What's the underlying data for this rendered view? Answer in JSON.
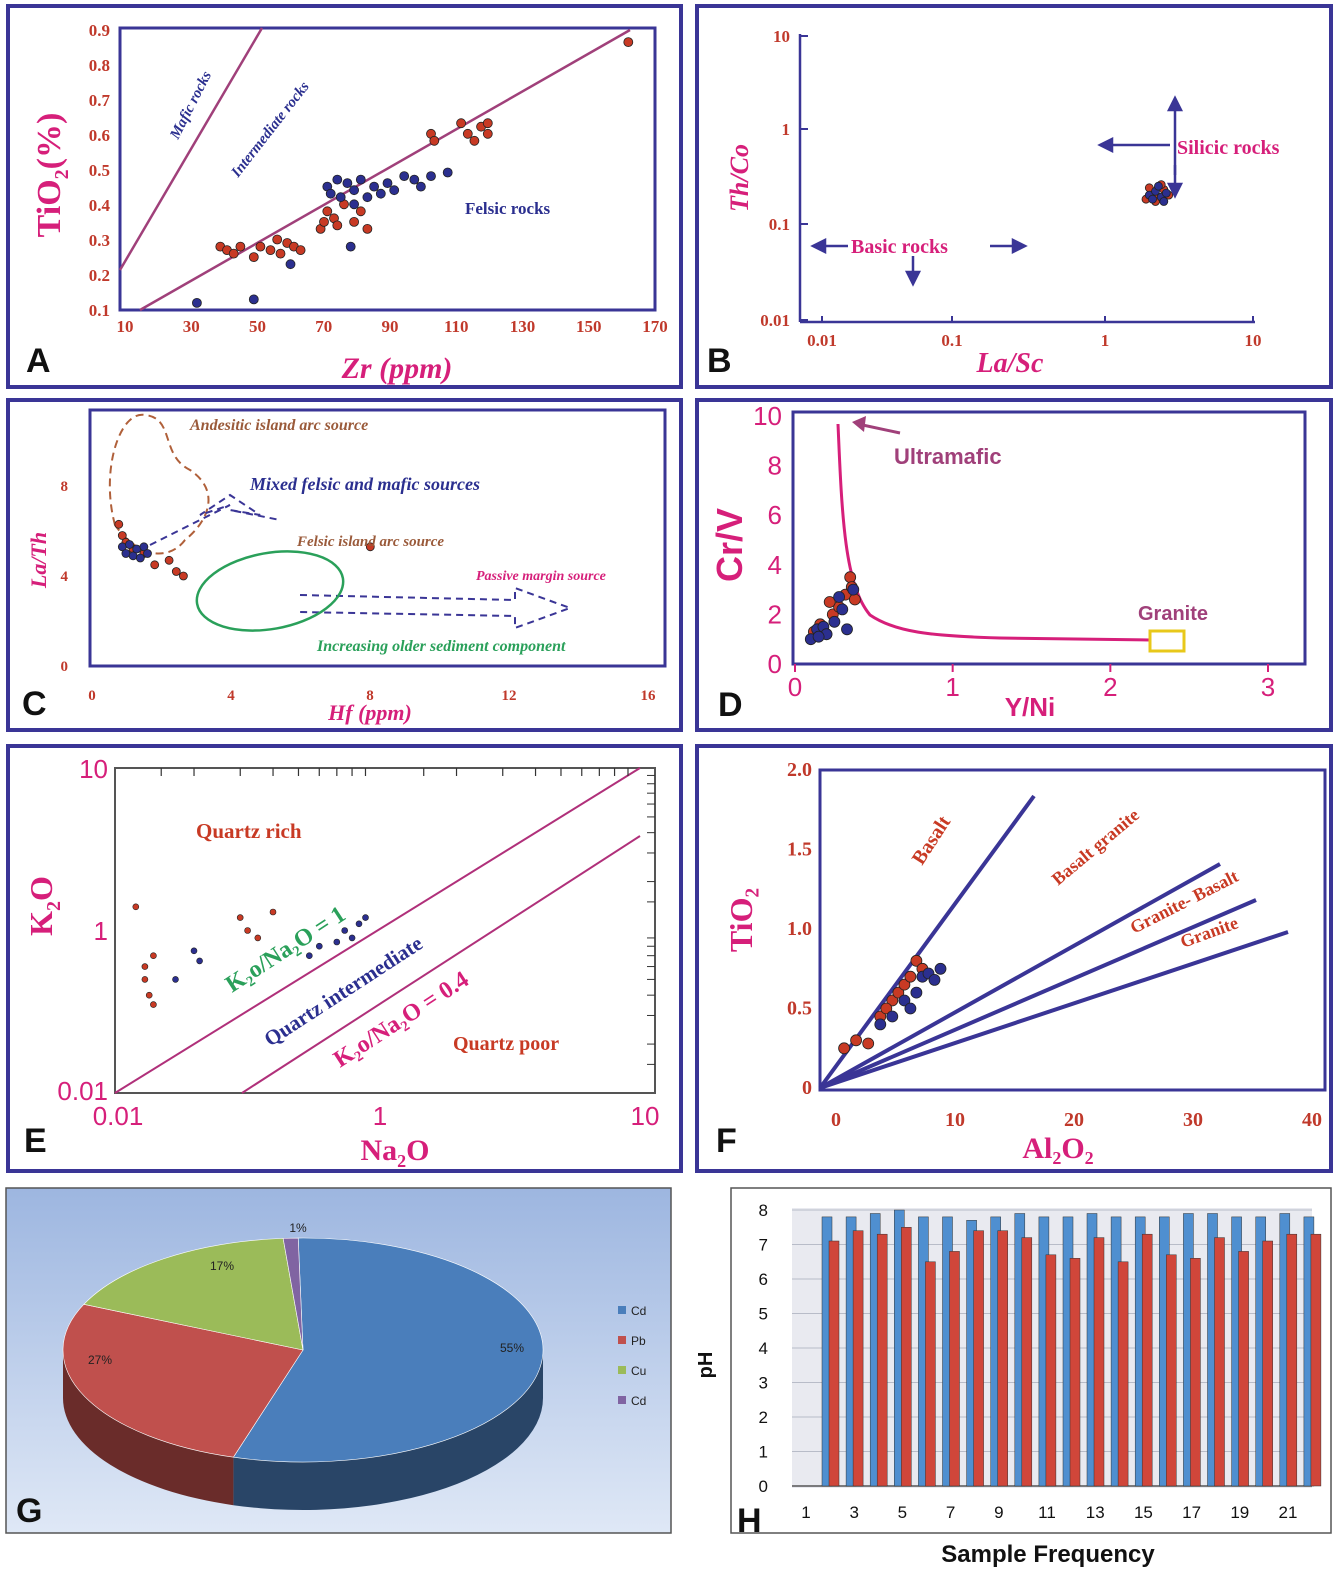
{
  "panels": {
    "A": {
      "letter": "A",
      "xlabel": "Zr (ppm)",
      "ylabel_main": "TiO",
      "ylabel_sub": "2",
      "ylabel_tail": "(%)",
      "x_ticks": [
        "10",
        "30",
        "50",
        "70",
        "90",
        "110",
        "130",
        "150",
        "170"
      ],
      "y_ticks": [
        "0.1",
        "0.2",
        "0.3",
        "0.4",
        "0.5",
        "0.6",
        "0.7",
        "0.8",
        "0.9"
      ],
      "labels": {
        "mafic": "Mafic rocks",
        "intermediate": "Intermediate rocks",
        "felsic": "Felsic rocks"
      }
    },
    "B": {
      "letter": "B",
      "xlabel": "La/Sc",
      "ylabel": "Th/Co",
      "x_ticks": [
        "0.01",
        "0.1",
        "1",
        "10"
      ],
      "y_ticks": [
        "0.01",
        "0.1",
        "1",
        "10"
      ],
      "labels": {
        "silicic": "Silicic rocks",
        "basic": "Basic rocks"
      }
    },
    "C": {
      "letter": "C",
      "xlabel": "Hf (ppm)",
      "ylabel": "La/Th",
      "x_ticks": [
        "0",
        "4",
        "8",
        "12",
        "16"
      ],
      "y_ticks": [
        "0",
        "4",
        "8"
      ],
      "labels": {
        "andesitic": "Andesitic island arc source",
        "mixed": "Mixed felsic and mafic sources",
        "felsic_arc": "Felsic island arc source",
        "passive": "Passive margin source",
        "older": "Increasing older sediment component"
      }
    },
    "D": {
      "letter": "D",
      "xlabel": "Y/Ni",
      "ylabel": "Cr/V",
      "x_ticks": [
        "0",
        "1",
        "2",
        "3"
      ],
      "y_ticks": [
        "0",
        "2",
        "4",
        "6",
        "8",
        "10"
      ],
      "labels": {
        "ultramafic": "Ultramafic",
        "granite": "Granite"
      }
    },
    "E": {
      "letter": "E",
      "xlabel_main": "Na",
      "xlabel_sub": "2",
      "xlabel_tail": "O",
      "ylabel_main": "K",
      "ylabel_sub": "2",
      "ylabel_tail": "O",
      "x_ticks": [
        "0.01",
        "1",
        "10"
      ],
      "y_ticks": [
        "0.01",
        "1",
        "10"
      ],
      "labels": {
        "quartz_rich": "Quartz rich",
        "ratio1": "K₂o/Na₂O = 1",
        "intermediate": "Quartz intermediate",
        "ratio04": "K₂o/Na₂O = 0.4",
        "quartz_poor": "Quartz poor"
      }
    },
    "F": {
      "letter": "F",
      "xlabel": "Al₂O₂",
      "ylabel": "TiO₂",
      "x_ticks": [
        "0",
        "10",
        "20",
        "30",
        "40"
      ],
      "y_ticks": [
        "0",
        "0.5",
        "1.0",
        "1.5",
        "2.0"
      ],
      "labels": {
        "basalt": "Basalt",
        "basalt_granite": "Basalt granite",
        "granite_basalt": "Granite- Basalt",
        "granite": "Granite"
      }
    },
    "G": {
      "letter": "G"
    },
    "H": {
      "letter": "H",
      "ylabel": "pH",
      "xlabel": "Sample Frequency",
      "y_ticks": [
        "0",
        "1",
        "2",
        "3",
        "4",
        "5",
        "6",
        "7",
        "8"
      ],
      "x_ticks": [
        "1",
        "3",
        "5",
        "7",
        "9",
        "11",
        "13",
        "15",
        "17",
        "19",
        "21"
      ]
    }
  },
  "chart_data": [
    {
      "type": "scatter",
      "panel": "A",
      "xlabel": "Zr (ppm)",
      "ylabel": "TiO2 (%)",
      "xlim": [
        10,
        170
      ],
      "ylim": [
        0.1,
        0.9
      ],
      "series": [
        {
          "color": "#c83a24",
          "points": [
            [
              40,
              0.28
            ],
            [
              42,
              0.27
            ],
            [
              44,
              0.26
            ],
            [
              46,
              0.28
            ],
            [
              50,
              0.25
            ],
            [
              52,
              0.28
            ],
            [
              55,
              0.27
            ],
            [
              57,
              0.3
            ],
            [
              58,
              0.26
            ],
            [
              60,
              0.29
            ],
            [
              62,
              0.28
            ],
            [
              64,
              0.27
            ],
            [
              70,
              0.33
            ],
            [
              71,
              0.35
            ],
            [
              72,
              0.38
            ],
            [
              74,
              0.36
            ],
            [
              75,
              0.34
            ],
            [
              77,
              0.4
            ],
            [
              80,
              0.35
            ],
            [
              82,
              0.38
            ],
            [
              84,
              0.33
            ],
            [
              103,
              0.6
            ],
            [
              104,
              0.58
            ],
            [
              112,
              0.63
            ],
            [
              114,
              0.6
            ],
            [
              116,
              0.58
            ],
            [
              118,
              0.62
            ],
            [
              120,
              0.6
            ],
            [
              120,
              0.63
            ],
            [
              162,
              0.86
            ]
          ]
        },
        {
          "color": "#2b2f8f",
          "points": [
            [
              33,
              0.12
            ],
            [
              50,
              0.13
            ],
            [
              61,
              0.23
            ],
            [
              72,
              0.45
            ],
            [
              73,
              0.43
            ],
            [
              75,
              0.47
            ],
            [
              76,
              0.42
            ],
            [
              78,
              0.46
            ],
            [
              80,
              0.44
            ],
            [
              80,
              0.4
            ],
            [
              82,
              0.47
            ],
            [
              84,
              0.42
            ],
            [
              86,
              0.45
            ],
            [
              88,
              0.43
            ],
            [
              90,
              0.46
            ],
            [
              92,
              0.44
            ],
            [
              95,
              0.48
            ],
            [
              98,
              0.47
            ],
            [
              100,
              0.45
            ],
            [
              103,
              0.48
            ],
            [
              108,
              0.49
            ],
            [
              79,
              0.28
            ]
          ]
        }
      ]
    },
    {
      "type": "scatter",
      "panel": "B",
      "xlabel": "La/Sc",
      "ylabel": "Th/Co",
      "x_scale": "log",
      "y_scale": "log",
      "xlim": [
        0.01,
        10
      ],
      "ylim": [
        0.01,
        10
      ],
      "series": [
        {
          "color": "#c83a24",
          "points": [
            [
              1.8,
              0.19
            ],
            [
              2.0,
              0.22
            ],
            [
              2.2,
              0.2
            ],
            [
              2.4,
              0.24
            ],
            [
              2.1,
              0.18
            ],
            [
              2.6,
              0.21
            ],
            [
              1.9,
              0.25
            ],
            [
              2.3,
              0.27
            ]
          ]
        },
        {
          "color": "#2b2f8f",
          "points": [
            [
              1.9,
              0.21
            ],
            [
              2.1,
              0.23
            ],
            [
              2.3,
              0.2
            ],
            [
              2.5,
              0.22
            ],
            [
              2.0,
              0.19
            ],
            [
              2.2,
              0.26
            ],
            [
              2.4,
              0.18
            ]
          ]
        }
      ]
    },
    {
      "type": "scatter",
      "panel": "C",
      "xlabel": "Hf (ppm)",
      "ylabel": "La/Th",
      "xlim": [
        0,
        16
      ],
      "ylim": [
        0,
        10
      ],
      "series": [
        {
          "color": "#c83a24",
          "points": [
            [
              0.8,
              6.3
            ],
            [
              0.9,
              5.8
            ],
            [
              1.0,
              5.5
            ],
            [
              1.2,
              5.2
            ],
            [
              1.5,
              5.0
            ],
            [
              1.8,
              4.5
            ],
            [
              2.2,
              4.7
            ],
            [
              2.4,
              4.2
            ],
            [
              2.6,
              4.0
            ],
            [
              7.8,
              5.3
            ]
          ]
        },
        {
          "color": "#2b2f8f",
          "points": [
            [
              0.9,
              5.3
            ],
            [
              1.0,
              5.0
            ],
            [
              1.1,
              5.4
            ],
            [
              1.2,
              4.9
            ],
            [
              1.3,
              5.2
            ],
            [
              1.4,
              4.8
            ],
            [
              1.5,
              5.3
            ],
            [
              1.6,
              5.0
            ]
          ]
        }
      ]
    },
    {
      "type": "scatter",
      "panel": "D",
      "xlabel": "Y/Ni",
      "ylabel": "Cr/V",
      "xlim": [
        0,
        3
      ],
      "ylim": [
        0,
        10
      ],
      "series": [
        {
          "color": "#c83a24",
          "points": [
            [
              0.12,
              1.3
            ],
            [
              0.16,
              1.6
            ],
            [
              0.2,
              1.2
            ],
            [
              0.24,
              2.0
            ],
            [
              0.28,
              2.3
            ],
            [
              0.32,
              2.8
            ],
            [
              0.35,
              3.5
            ],
            [
              0.36,
              3.1
            ],
            [
              0.38,
              2.6
            ],
            [
              0.22,
              2.5
            ]
          ]
        },
        {
          "color": "#2b2f8f",
          "points": [
            [
              0.1,
              1.0
            ],
            [
              0.14,
              1.4
            ],
            [
              0.18,
              1.5
            ],
            [
              0.2,
              1.2
            ],
            [
              0.25,
              1.7
            ],
            [
              0.3,
              2.2
            ],
            [
              0.33,
              1.4
            ],
            [
              0.28,
              2.7
            ],
            [
              0.37,
              3.0
            ],
            [
              0.15,
              1.1
            ]
          ]
        }
      ]
    },
    {
      "type": "scatter",
      "panel": "E",
      "xlabel": "Na2O",
      "ylabel": "K2O",
      "x_scale": "log",
      "y_scale": "log",
      "xlim": [
        0.1,
        10
      ],
      "ylim": [
        0.1,
        10
      ],
      "series": [
        {
          "color": "#c83a24",
          "points": [
            [
              0.12,
              1.4
            ],
            [
              0.13,
              0.6
            ],
            [
              0.135,
              0.4
            ],
            [
              0.14,
              0.35
            ],
            [
              0.13,
              0.5
            ],
            [
              0.14,
              0.7
            ],
            [
              0.3,
              1.2
            ],
            [
              0.32,
              1.0
            ],
            [
              0.35,
              0.9
            ],
            [
              0.4,
              1.3
            ]
          ]
        },
        {
          "color": "#2b2f8f",
          "points": [
            [
              0.17,
              0.5
            ],
            [
              0.2,
              0.75
            ],
            [
              0.21,
              0.65
            ],
            [
              0.55,
              0.7
            ],
            [
              0.6,
              0.8
            ],
            [
              0.7,
              0.85
            ],
            [
              0.75,
              1.0
            ],
            [
              0.8,
              0.9
            ],
            [
              0.85,
              1.1
            ],
            [
              0.9,
              1.2
            ]
          ]
        }
      ]
    },
    {
      "type": "scatter",
      "panel": "F",
      "xlabel": "Al2O2",
      "ylabel": "TiO2",
      "xlim": [
        0,
        40
      ],
      "ylim": [
        0,
        2.0
      ],
      "series": [
        {
          "color": "#c83a24",
          "points": [
            [
              2,
              0.25
            ],
            [
              3,
              0.3
            ],
            [
              4,
              0.28
            ],
            [
              5,
              0.45
            ],
            [
              6,
              0.55
            ],
            [
              6.5,
              0.6
            ],
            [
              7,
              0.65
            ],
            [
              7.5,
              0.7
            ],
            [
              8,
              0.8
            ],
            [
              8.5,
              0.75
            ],
            [
              5.5,
              0.5
            ]
          ]
        },
        {
          "color": "#2b2f8f",
          "points": [
            [
              5,
              0.4
            ],
            [
              6,
              0.45
            ],
            [
              7,
              0.55
            ],
            [
              8,
              0.6
            ],
            [
              8.5,
              0.7
            ],
            [
              9,
              0.72
            ],
            [
              9.5,
              0.68
            ],
            [
              10,
              0.75
            ],
            [
              7.5,
              0.5
            ]
          ]
        }
      ]
    },
    {
      "type": "pie",
      "panel": "G",
      "slices": [
        {
          "label": "Cd",
          "value": 55,
          "color": "#4a7ebb",
          "text": "55%"
        },
        {
          "label": "Pb",
          "value": 27,
          "color": "#c0504d",
          "text": "27%"
        },
        {
          "label": "Cu",
          "value": 17,
          "color": "#9bbb59",
          "text": "17%"
        },
        {
          "label": "Cd",
          "value": 1,
          "color": "#8064a2",
          "text": "1%"
        }
      ]
    },
    {
      "type": "bar",
      "panel": "H",
      "xlabel": "Sample Frequency",
      "ylabel": "pH",
      "ylim": [
        0,
        8
      ],
      "categories": [
        "1",
        "2",
        "3",
        "4",
        "5",
        "6",
        "7",
        "8",
        "9",
        "10",
        "11",
        "12",
        "13",
        "14",
        "15",
        "16",
        "17",
        "18",
        "19",
        "20",
        "21"
      ],
      "series": [
        {
          "color": "#4f8fd0",
          "values": [
            7.8,
            7.8,
            7.9,
            8.0,
            7.8,
            7.8,
            7.7,
            7.8,
            7.9,
            7.8,
            7.8,
            7.9,
            7.8,
            7.8,
            7.8,
            7.9,
            7.9,
            7.8,
            7.8,
            7.9,
            7.8
          ]
        },
        {
          "color": "#d0463a",
          "values": [
            7.1,
            7.4,
            7.3,
            7.5,
            6.5,
            6.8,
            7.4,
            7.4,
            7.2,
            6.7,
            6.6,
            7.2,
            6.5,
            7.3,
            6.7,
            6.6,
            7.2,
            6.8,
            7.1,
            7.3,
            7.3
          ]
        }
      ]
    }
  ]
}
